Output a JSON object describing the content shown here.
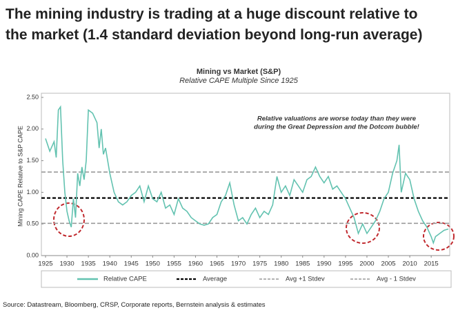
{
  "heading": [
    "The mining industry is trading at a huge discount relative to",
    "the market (1.4 standard deviation beyond long-run average)"
  ],
  "source": "Source: Datastream, Bloomberg, CRSP, Corporate reports, Bernstein analysis & estimates",
  "chart_data": {
    "type": "line",
    "title": "Mining vs Market (S&P)",
    "subtitle": "Relative CAPE Multiple Since 1925",
    "y_label": "Mining CAPE Relative to S&P CAPE",
    "annotation": [
      "Relative valuations are worse today than they were",
      "during the Great Depression and the Dotcom bubble!"
    ],
    "annotation_color": "#c0282d",
    "x": [
      1925,
      1926,
      1927,
      1927.5,
      1928,
      1928.5,
      1929,
      1929.5,
      1930,
      1930.5,
      1931,
      1931.5,
      1932,
      1932.5,
      1933,
      1933.5,
      1934,
      1934.5,
      1935,
      1936,
      1937,
      1937.5,
      1938,
      1938.5,
      1939,
      1940,
      1941,
      1942,
      1943,
      1944,
      1945,
      1946,
      1947,
      1948,
      1949,
      1950,
      1951,
      1952,
      1953,
      1954,
      1955,
      1956,
      1957,
      1958,
      1959,
      1960,
      1961,
      1962,
      1963,
      1964,
      1965,
      1966,
      1967,
      1968,
      1969,
      1970,
      1971,
      1972,
      1973,
      1974,
      1975,
      1976,
      1977,
      1978,
      1979,
      1980,
      1981,
      1982,
      1983,
      1984,
      1985,
      1986,
      1987,
      1988,
      1989,
      1990,
      1991,
      1992,
      1993,
      1994,
      1995,
      1996,
      1997,
      1998,
      1999,
      2000,
      2001,
      2002,
      2003,
      2004,
      2005,
      2006,
      2007,
      2007.5,
      2008,
      2009,
      2010,
      2011,
      2012,
      2013,
      2014,
      2015,
      2015.5,
      2016,
      2017,
      2018,
      2019
    ],
    "series": [
      {
        "name": "Relative CAPE",
        "color": "#62c2b0",
        "values": [
          1.85,
          1.65,
          1.8,
          1.55,
          2.3,
          2.35,
          1.5,
          1.0,
          0.7,
          0.55,
          0.45,
          0.9,
          0.6,
          1.3,
          1.1,
          1.4,
          1.2,
          1.5,
          2.3,
          2.25,
          2.1,
          1.7,
          2.0,
          1.6,
          1.7,
          1.3,
          1.0,
          0.85,
          0.8,
          0.85,
          0.95,
          1.0,
          1.1,
          0.85,
          1.1,
          0.9,
          0.85,
          1.0,
          0.75,
          0.8,
          0.65,
          0.9,
          0.75,
          0.7,
          0.6,
          0.55,
          0.5,
          0.48,
          0.5,
          0.6,
          0.65,
          0.85,
          0.95,
          1.15,
          0.8,
          0.55,
          0.6,
          0.5,
          0.65,
          0.75,
          0.6,
          0.7,
          0.65,
          0.8,
          1.25,
          1.0,
          1.1,
          0.95,
          1.2,
          1.1,
          1.0,
          1.2,
          1.25,
          1.4,
          1.25,
          1.15,
          1.25,
          1.05,
          1.1,
          1.0,
          0.9,
          0.75,
          0.6,
          0.35,
          0.5,
          0.35,
          0.45,
          0.55,
          0.7,
          0.9,
          1.0,
          1.3,
          1.5,
          1.75,
          1.0,
          1.3,
          1.2,
          0.9,
          0.7,
          0.55,
          0.45,
          0.3,
          0.2,
          0.3,
          0.35,
          0.4,
          0.42
        ]
      }
    ],
    "reference_lines": [
      {
        "name": "Average",
        "value": 0.91,
        "color": "#000000"
      },
      {
        "name": "Avg +1 Stdev",
        "value": 1.32,
        "color": "#999999"
      },
      {
        "name": "Avg - 1 Stdev",
        "value": 0.51,
        "color": "#999999"
      }
    ],
    "xlim": [
      1925,
      2019
    ],
    "xticks": [
      1925,
      1930,
      1935,
      1940,
      1945,
      1950,
      1955,
      1960,
      1965,
      1970,
      1975,
      1980,
      1985,
      1990,
      1995,
      2000,
      2005,
      2010,
      2015
    ],
    "ylim": [
      0,
      2.5
    ],
    "yticks": [
      {
        "value": 0,
        "label": "0.00"
      },
      {
        "value": 0.5,
        "label": "0.50"
      },
      {
        "value": 1,
        "label": "1.00"
      },
      {
        "value": 1.5,
        "label": "1.50"
      },
      {
        "value": 2,
        "label": "2.00"
      },
      {
        "value": 2.5,
        "label": "2.50"
      }
    ],
    "legend": "bottom"
  }
}
